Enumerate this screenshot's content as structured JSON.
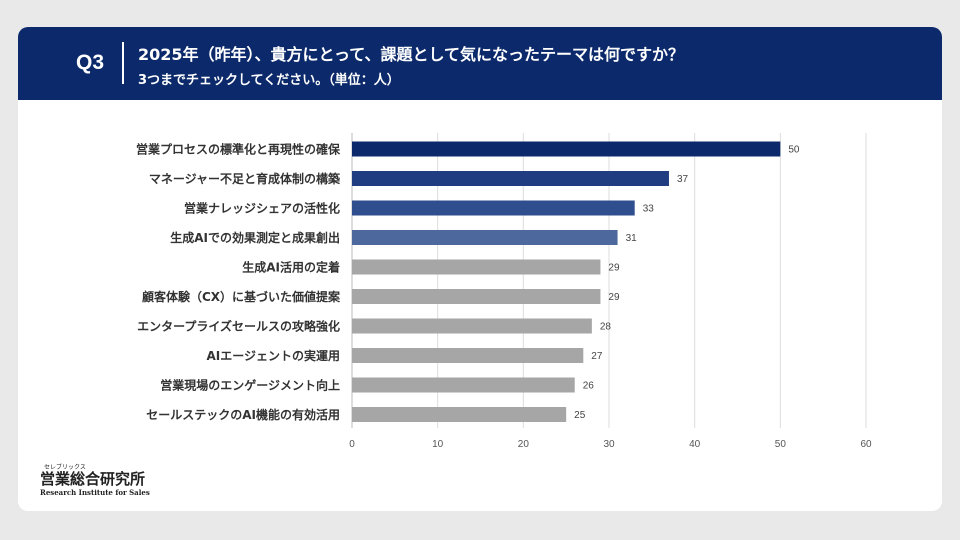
{
  "header": {
    "question": "Q3",
    "title": "2025年（昨年）、貴方にとって、課題として気になったテーマは何ですか？",
    "subtitle": "3つまでチェックしてください。（単位：人）"
  },
  "logo": {
    "kana": "セレブリックス",
    "name": "営業総合研究所",
    "english": "Research Institute for Sales"
  },
  "chart_data": {
    "type": "bar",
    "orientation": "horizontal",
    "title": "",
    "xlabel": "",
    "ylabel": "",
    "xlim": [
      0,
      60
    ],
    "ticks": [
      0,
      10,
      20,
      30,
      40,
      50,
      60
    ],
    "grid": true,
    "categories": [
      "営業プロセスの標準化と再現性の確保",
      "マネージャー不足と育成体制の構築",
      "営業ナレッジシェアの活性化",
      "生成AIでの効果測定と成果創出",
      "生成AI活用の定着",
      "顧客体験（CX）に基づいた価値提案",
      "エンタープライズセールスの攻略強化",
      "AIエージェントの実運用",
      "営業現場のエンゲージメント向上",
      "セールステックのAI機能の有効活用"
    ],
    "values": [
      50,
      37,
      33,
      31,
      29,
      29,
      28,
      27,
      26,
      25
    ],
    "colors": [
      "#0c2a6b",
      "#1f3d80",
      "#2f4e8e",
      "#4d689d",
      "#a6a6a6",
      "#a6a6a6",
      "#a6a6a6",
      "#a6a6a6",
      "#a6a6a6",
      "#a6a6a6"
    ]
  }
}
